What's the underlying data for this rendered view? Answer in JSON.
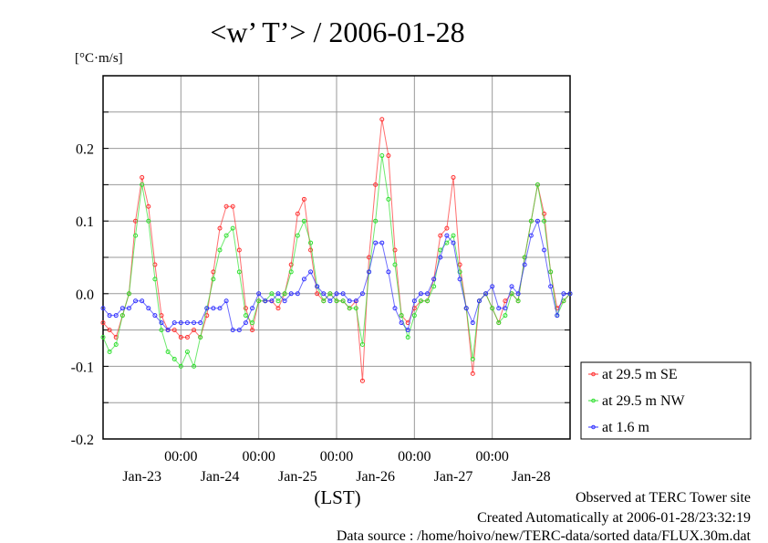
{
  "chart_data": {
    "type": "line",
    "title": "<w’ T’> / 2006-01-28",
    "ylabel": "[°C·m/s]",
    "xlabel": "(LST)",
    "x_unit": "hours since Jan-23 00:00",
    "xlim": [
      0,
      144
    ],
    "ylim": [
      -0.2,
      0.3
    ],
    "grid": true,
    "yticks": [
      {
        "value": 0.2,
        "label": "0.2"
      },
      {
        "value": 0.1,
        "label": "0.1"
      },
      {
        "value": 0.0,
        "label": "0.0"
      },
      {
        "value": -0.1,
        "label": "-0.1"
      },
      {
        "value": -0.2,
        "label": "-0.2"
      }
    ],
    "ygrid": [
      0.25,
      0.2,
      0.15,
      0.1,
      0.05,
      0.0,
      -0.05,
      -0.1,
      -0.15
    ],
    "xticks": [
      {
        "value": 24,
        "label": "00:00"
      },
      {
        "value": 48,
        "label": "00:00"
      },
      {
        "value": 72,
        "label": "00:00"
      },
      {
        "value": 96,
        "label": "00:00"
      },
      {
        "value": 120,
        "label": "00:00"
      }
    ],
    "day_labels": [
      {
        "value": 12,
        "label": "Jan-23"
      },
      {
        "value": 36,
        "label": "Jan-24"
      },
      {
        "value": 60,
        "label": "Jan-25"
      },
      {
        "value": 84,
        "label": "Jan-26"
      },
      {
        "value": 108,
        "label": "Jan-27"
      },
      {
        "value": 132,
        "label": "Jan-28"
      }
    ],
    "legend_position": "right-bottom-outside",
    "x_step_hours": 2,
    "series": [
      {
        "name": "at 29.5 m SE",
        "color": "#ff3030",
        "values": [
          -0.04,
          -0.05,
          -0.06,
          -0.03,
          0.0,
          0.1,
          0.16,
          0.12,
          0.04,
          -0.03,
          -0.05,
          -0.05,
          -0.06,
          -0.06,
          -0.05,
          -0.06,
          -0.03,
          0.03,
          0.09,
          0.12,
          0.12,
          0.06,
          -0.02,
          -0.05,
          -0.01,
          -0.01,
          -0.01,
          -0.02,
          0.0,
          0.04,
          0.11,
          0.13,
          0.06,
          0.0,
          -0.01,
          0.0,
          -0.01,
          -0.01,
          -0.02,
          -0.01,
          -0.12,
          0.05,
          0.15,
          0.24,
          0.19,
          0.06,
          -0.03,
          -0.04,
          -0.02,
          -0.01,
          -0.01,
          0.02,
          0.08,
          0.09,
          0.16,
          0.04,
          -0.02,
          -0.11,
          -0.01,
          0.0,
          -0.02,
          -0.04,
          -0.01,
          0.0,
          -0.01,
          0.05,
          0.1,
          0.15,
          0.11,
          0.03,
          -0.02,
          -0.01,
          0.0
        ]
      },
      {
        "name": "at 29.5 m NW",
        "color": "#30e030",
        "values": [
          -0.06,
          -0.08,
          -0.07,
          -0.03,
          0.0,
          0.08,
          0.15,
          0.1,
          0.02,
          -0.05,
          -0.08,
          -0.09,
          -0.1,
          -0.08,
          -0.1,
          -0.06,
          -0.02,
          0.02,
          0.06,
          0.08,
          0.09,
          0.03,
          -0.03,
          -0.04,
          -0.01,
          -0.01,
          0.0,
          -0.01,
          0.0,
          0.03,
          0.08,
          0.1,
          0.07,
          0.01,
          -0.01,
          0.0,
          -0.01,
          -0.01,
          -0.02,
          -0.02,
          -0.07,
          0.03,
          0.1,
          0.19,
          0.13,
          0.04,
          -0.03,
          -0.06,
          -0.03,
          -0.01,
          -0.01,
          0.01,
          0.06,
          0.07,
          0.08,
          0.03,
          -0.02,
          -0.09,
          -0.01,
          0.0,
          -0.02,
          -0.04,
          -0.03,
          0.0,
          -0.01,
          0.05,
          0.1,
          0.15,
          0.1,
          0.03,
          -0.03,
          -0.01,
          0.0
        ]
      },
      {
        "name": "at 1.6 m",
        "color": "#3030ff",
        "values": [
          -0.02,
          -0.03,
          -0.03,
          -0.02,
          -0.02,
          -0.01,
          -0.01,
          -0.02,
          -0.03,
          -0.04,
          -0.05,
          -0.04,
          -0.04,
          -0.04,
          -0.04,
          -0.04,
          -0.02,
          -0.02,
          -0.02,
          -0.01,
          -0.05,
          -0.05,
          -0.04,
          -0.02,
          0.0,
          -0.01,
          -0.01,
          0.0,
          -0.01,
          0.0,
          0.0,
          0.02,
          0.03,
          0.01,
          0.0,
          -0.01,
          0.0,
          0.0,
          -0.01,
          -0.01,
          0.0,
          0.03,
          0.07,
          0.07,
          0.03,
          -0.02,
          -0.04,
          -0.05,
          -0.01,
          0.0,
          0.0,
          0.02,
          0.05,
          0.08,
          0.07,
          0.02,
          -0.02,
          -0.04,
          -0.01,
          0.0,
          0.01,
          -0.02,
          -0.02,
          0.01,
          0.0,
          0.04,
          0.08,
          0.1,
          0.06,
          0.01,
          -0.03,
          0.0,
          0.0
        ]
      }
    ]
  },
  "footer": {
    "line1": "Observed at TERC Tower site",
    "line2": "Created Automatically at 2006-01-28/23:32:19",
    "line3": "Data source : /home/hoivo/new/TERC-data/sorted  data/FLUX.30m.dat"
  }
}
